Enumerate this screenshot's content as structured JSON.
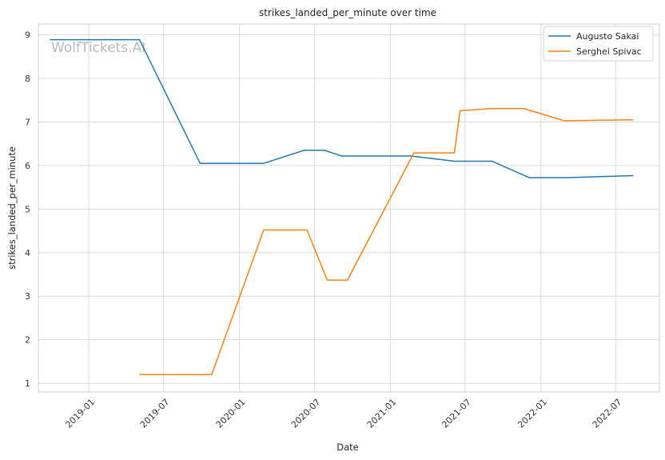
{
  "chart_data": {
    "type": "line",
    "title": "strikes_landed_per_minute over time",
    "xlabel": "Date",
    "ylabel": "strikes_landed_per_minute",
    "watermark": "WolfTickets.AI",
    "xlim": [
      "2018-09-01",
      "2022-10-15"
    ],
    "ylim": [
      0.8,
      9.25
    ],
    "y_ticks": [
      1,
      2,
      3,
      4,
      5,
      6,
      7,
      8,
      9
    ],
    "x_ticks": [
      "2019-01-01",
      "2019-07-01",
      "2020-01-01",
      "2020-07-01",
      "2021-01-01",
      "2021-07-01",
      "2022-01-01",
      "2022-07-01"
    ],
    "x_tick_labels": [
      "2019-01",
      "2019-07",
      "2020-01",
      "2020-07",
      "2021-01",
      "2021-07",
      "2022-01",
      "2022-07"
    ],
    "grid": true,
    "legend_position": "top-right",
    "series": [
      {
        "name": "Augusto Sakai",
        "color": "#1f77b4",
        "points": [
          {
            "x": "2018-09-29",
            "y": 8.89
          },
          {
            "x": "2019-05-04",
            "y": 8.89
          },
          {
            "x": "2019-09-28",
            "y": 6.05
          },
          {
            "x": "2020-02-29",
            "y": 6.05
          },
          {
            "x": "2020-06-06",
            "y": 6.35
          },
          {
            "x": "2020-07-25",
            "y": 6.35
          },
          {
            "x": "2020-09-05",
            "y": 6.22
          },
          {
            "x": "2021-02-20",
            "y": 6.22
          },
          {
            "x": "2021-06-05",
            "y": 6.1
          },
          {
            "x": "2021-09-04",
            "y": 6.1
          },
          {
            "x": "2021-12-04",
            "y": 5.72
          },
          {
            "x": "2022-03-05",
            "y": 5.72
          },
          {
            "x": "2022-08-13",
            "y": 5.77
          }
        ]
      },
      {
        "name": "Serghei Spivac",
        "color": "#ff7f0e",
        "points": [
          {
            "x": "2019-05-04",
            "y": 1.2
          },
          {
            "x": "2019-10-26",
            "y": 1.2
          },
          {
            "x": "2020-02-29",
            "y": 4.52
          },
          {
            "x": "2020-06-13",
            "y": 4.52
          },
          {
            "x": "2020-08-01",
            "y": 3.37
          },
          {
            "x": "2020-09-19",
            "y": 3.37
          },
          {
            "x": "2021-02-27",
            "y": 6.29
          },
          {
            "x": "2021-06-05",
            "y": 6.29
          },
          {
            "x": "2021-06-19",
            "y": 7.26
          },
          {
            "x": "2021-09-04",
            "y": 7.31
          },
          {
            "x": "2021-11-20",
            "y": 7.31
          },
          {
            "x": "2022-02-26",
            "y": 7.03
          },
          {
            "x": "2022-08-13",
            "y": 7.05
          }
        ]
      }
    ]
  }
}
